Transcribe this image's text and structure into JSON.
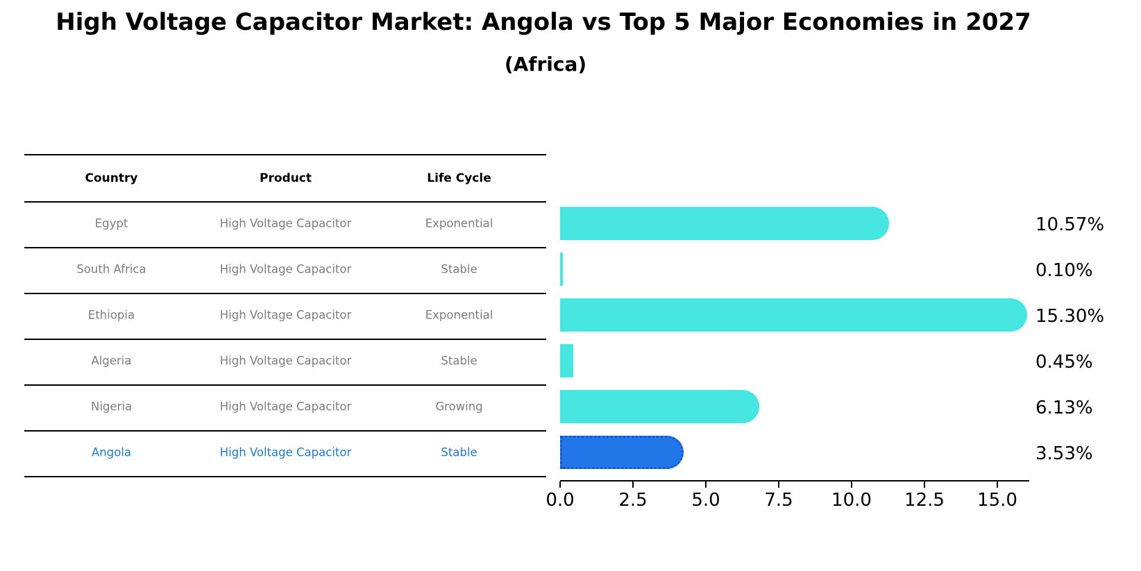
{
  "title": {
    "text": "High Voltage Capacitor Market: Angola vs Top 5 Major Economies in 2027",
    "subtitle": "(Africa)"
  },
  "table": {
    "headers": [
      "Country",
      "Product",
      "Life Cycle"
    ],
    "rows": [
      {
        "country": "Egypt",
        "product": "High Voltage Capacitor",
        "life_cycle": "Exponential",
        "highlight": false
      },
      {
        "country": "South Africa",
        "product": "High Voltage Capacitor",
        "life_cycle": "Stable",
        "highlight": false
      },
      {
        "country": "Ethiopia",
        "product": "High Voltage Capacitor",
        "life_cycle": "Exponential",
        "highlight": false
      },
      {
        "country": "Algeria",
        "product": "High Voltage Capacitor",
        "life_cycle": "Stable",
        "highlight": false
      },
      {
        "country": "Nigeria",
        "product": "High Voltage Capacitor",
        "life_cycle": "Growing",
        "highlight": false
      },
      {
        "country": "Angola",
        "product": "High Voltage Capacitor",
        "life_cycle": "Stable",
        "highlight": true
      }
    ]
  },
  "chart_data": {
    "type": "bar",
    "orientation": "horizontal",
    "title": "High Voltage Capacitor Market: Angola vs Top 5 Major Economies in 2027",
    "subtitle": "(Africa)",
    "categories": [
      "Egypt",
      "South Africa",
      "Ethiopia",
      "Algeria",
      "Nigeria",
      "Angola"
    ],
    "values": [
      10.57,
      0.1,
      15.3,
      0.45,
      6.13,
      3.53
    ],
    "value_labels": [
      "10.57%",
      "0.10%",
      "15.30%",
      "0.45%",
      "6.13%",
      "3.53%"
    ],
    "x_ticks": [
      0.0,
      2.5,
      5.0,
      7.5,
      10.0,
      12.5,
      15.0
    ],
    "x_tick_labels": [
      "0.0",
      "2.5",
      "5.0",
      "7.5",
      "10.0",
      "12.5",
      "15.0"
    ],
    "xlim": [
      0,
      16.1
    ],
    "grid": false,
    "legend": false,
    "highlight_index": 5,
    "bar_color": "#47e6e0",
    "highlight_fill": "#2176e8",
    "highlight_border": "#1557ce",
    "axis_color": "#000000",
    "table_text_color": "#7d7d7d",
    "highlight_text_color": "#2478c8"
  }
}
